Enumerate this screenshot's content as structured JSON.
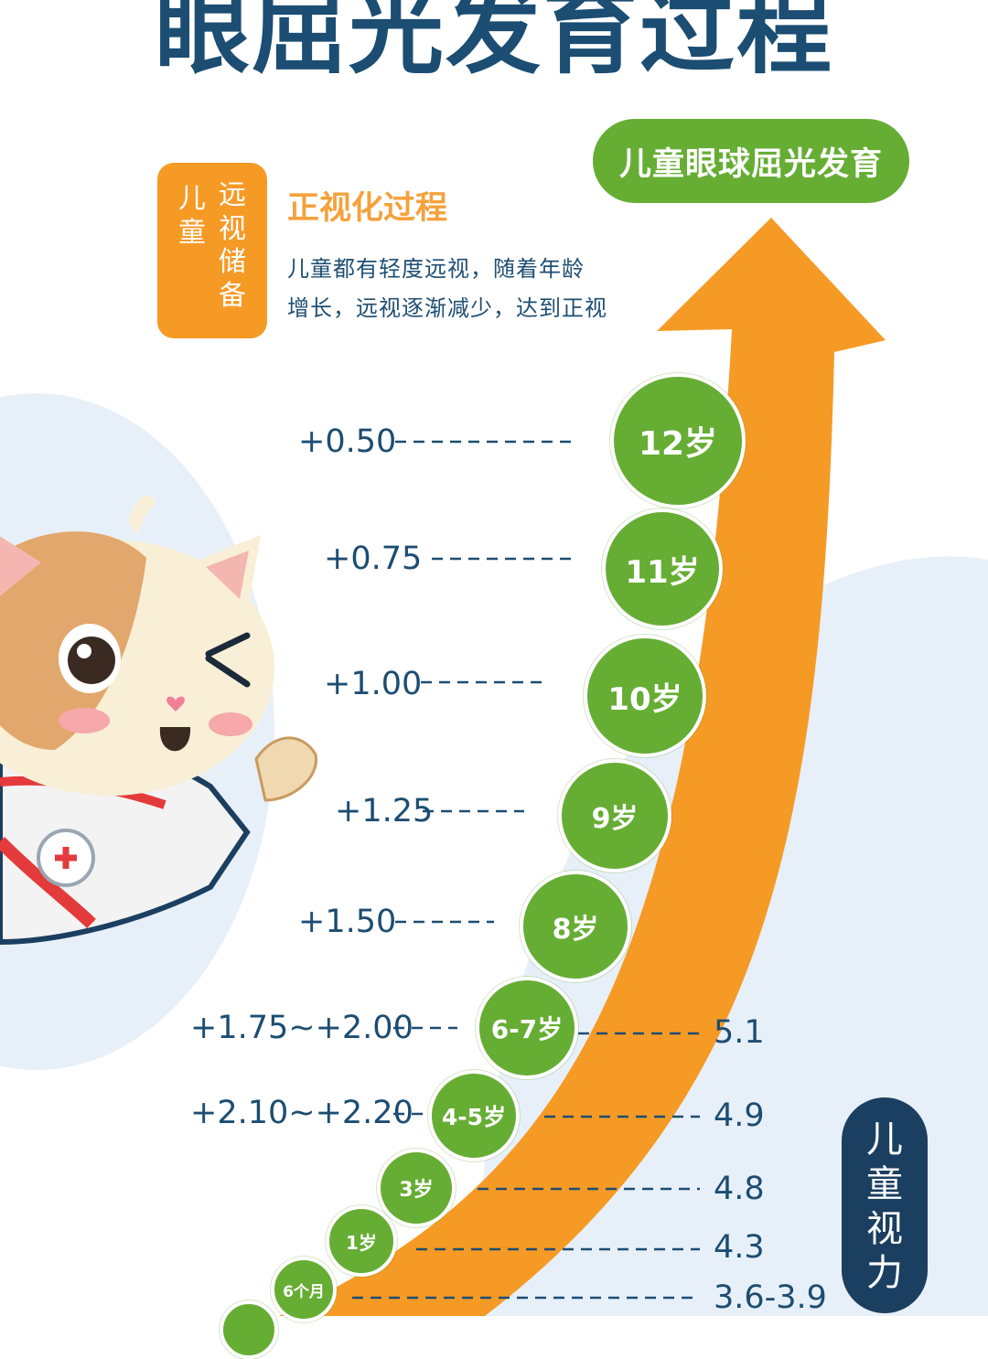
{
  "title": "眼屈光发育过程",
  "header_bubble": "儿童眼球屈光发育",
  "badge": {
    "col_left": "儿童",
    "col_right": "远视储备"
  },
  "subtitle": "正视化过程",
  "description": [
    "儿童都有轻度远视，随着年龄",
    "增长，远视逐渐减少，达到正视"
  ],
  "side_label": "儿童视力",
  "colors": {
    "navy": "#1c4d72",
    "green": "#66ad34",
    "orange": "#f69a26",
    "light_blue": "#e6eff7",
    "badge_blue": "#1b3f61"
  },
  "stages": [
    {
      "age": "12岁",
      "hyperopia": "+0.50"
    },
    {
      "age": "11岁",
      "hyperopia": "+0.75"
    },
    {
      "age": "10岁",
      "hyperopia": "+1.00"
    },
    {
      "age": "9岁",
      "hyperopia": "+1.25"
    },
    {
      "age": "8岁",
      "hyperopia": "+1.50"
    },
    {
      "age": "6-7岁",
      "hyperopia": "+1.75~+2.00",
      "vision": "5.1"
    },
    {
      "age": "4-5岁",
      "hyperopia": "+2.10~+2.20",
      "vision": "4.9"
    },
    {
      "age": "3岁",
      "vision": "4.8"
    },
    {
      "age": "1岁",
      "vision": "4.3"
    },
    {
      "age": "6个月",
      "vision": "3.6-3.9"
    }
  ]
}
